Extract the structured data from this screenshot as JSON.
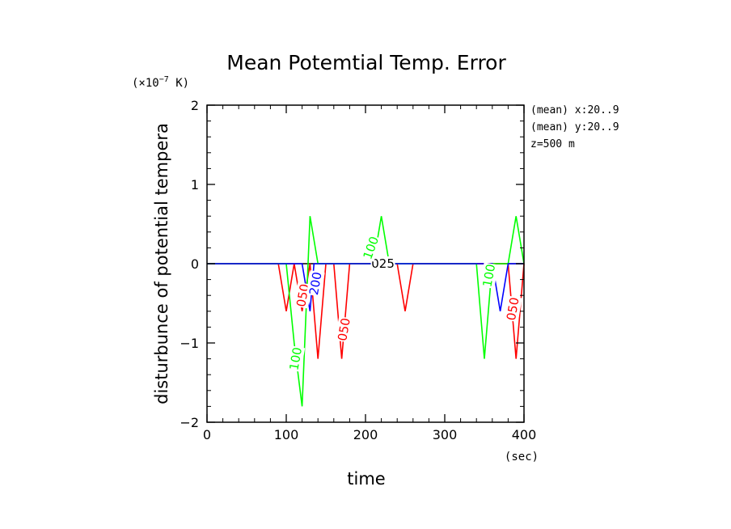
{
  "chart_data": {
    "type": "line",
    "title": "Mean Potemtial Temp. Error",
    "xlabel": "time",
    "xunit": "(sec)",
    "ylabel": "disturbunce of potential tempera",
    "yunit_prefix": "(×10",
    "yunit_exp": "−7",
    "yunit_suffix": " K)",
    "xlim": [
      0,
      400
    ],
    "ylim": [
      -2,
      2
    ],
    "xticks": [
      0,
      100,
      200,
      300,
      400
    ],
    "xtick_labels": [
      "0",
      "100",
      "200",
      "300",
      "400"
    ],
    "yticks": [
      -2,
      -1,
      0,
      1,
      2
    ],
    "ytick_labels": [
      "−2",
      "−1",
      "0",
      "1",
      "2"
    ],
    "annotations": [
      "(mean) x:20..9",
      "(mean) y:20..9",
      "z=500 m"
    ],
    "series": [
      {
        "name": "025",
        "color": "#000000",
        "points": [
          [
            0,
            0
          ],
          [
            400,
            0
          ]
        ],
        "labels": [
          {
            "text": "025",
            "x": 222,
            "y": 0,
            "angle": 0
          }
        ]
      },
      {
        "name": "050",
        "color": "#ff0000",
        "points": [
          [
            0,
            0
          ],
          [
            90,
            0
          ],
          [
            100,
            -0.6
          ],
          [
            110,
            0
          ],
          [
            120,
            -0.6
          ],
          [
            130,
            0
          ],
          [
            140,
            -1.2
          ],
          [
            150,
            0
          ],
          [
            160,
            0
          ],
          [
            170,
            -1.2
          ],
          [
            180,
            0
          ],
          [
            240,
            0
          ],
          [
            250,
            -0.6
          ],
          [
            260,
            0
          ],
          [
            380,
            0
          ],
          [
            390,
            -1.2
          ],
          [
            400,
            0
          ]
        ],
        "labels": [
          {
            "text": "050",
            "x": 121,
            "y": -0.4,
            "angle": -80
          },
          {
            "text": "050",
            "x": 173,
            "y": -0.83,
            "angle": -80
          },
          {
            "text": "050",
            "x": 386,
            "y": -0.57,
            "angle": -80
          }
        ]
      },
      {
        "name": "100",
        "color": "#00ff00",
        "points": [
          [
            0,
            0
          ],
          [
            100,
            0
          ],
          [
            110,
            -1.0
          ],
          [
            120,
            -1.8
          ],
          [
            130,
            0.6
          ],
          [
            140,
            0
          ],
          [
            210,
            0
          ],
          [
            220,
            0.6
          ],
          [
            230,
            0
          ],
          [
            340,
            0
          ],
          [
            350,
            -1.2
          ],
          [
            360,
            0
          ],
          [
            380,
            0
          ],
          [
            390,
            0.6
          ],
          [
            400,
            0
          ]
        ],
        "labels": [
          {
            "text": "100",
            "x": 112,
            "y": -1.2,
            "angle": -80
          },
          {
            "text": "100",
            "x": 207,
            "y": 0.2,
            "angle": -70
          },
          {
            "text": "100",
            "x": 356,
            "y": -0.15,
            "angle": -80
          }
        ]
      },
      {
        "name": "200",
        "color": "#0000ff",
        "points": [
          [
            0,
            0
          ],
          [
            120,
            0
          ],
          [
            130,
            -0.6
          ],
          [
            135,
            0
          ],
          [
            360,
            0
          ],
          [
            370,
            -0.6
          ],
          [
            380,
            0
          ],
          [
            400,
            0
          ]
        ],
        "labels": [
          {
            "text": "200",
            "x": 137,
            "y": -0.25,
            "angle": -80
          }
        ]
      }
    ]
  }
}
